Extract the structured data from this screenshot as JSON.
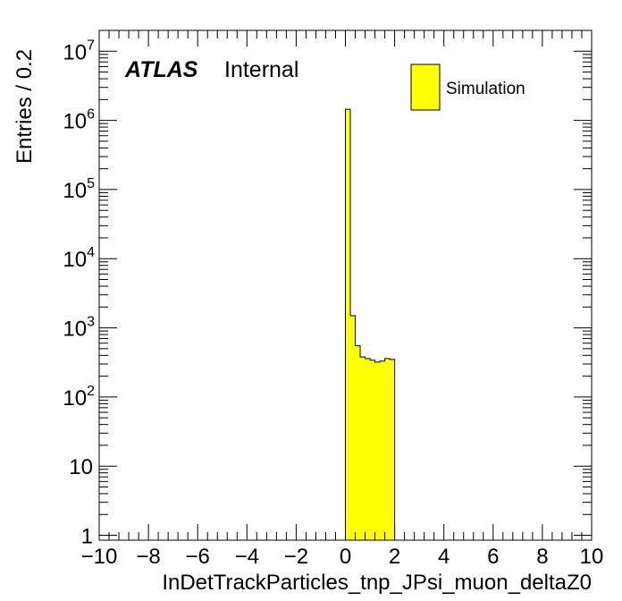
{
  "chart_data": {
    "type": "bar",
    "ylabel": "Entries / 0.2",
    "xlabel": "InDetTrackParticles_tnp_JPsi_muon_deltaZ0",
    "xlim": [
      -10,
      10
    ],
    "ylim": [
      0.85,
      20000000
    ],
    "yscale": "log",
    "bin_width": 0.2,
    "x_ticks": [
      "−10",
      "−8",
      "−6",
      "−4",
      "−2",
      "0",
      "2",
      "4",
      "6",
      "8",
      "10"
    ],
    "y_ticks": [
      {
        "base": "1",
        "exp": ""
      },
      {
        "base": "10",
        "exp": ""
      },
      {
        "base": "10",
        "exp": "2"
      },
      {
        "base": "10",
        "exp": "3"
      },
      {
        "base": "10",
        "exp": "4"
      },
      {
        "base": "10",
        "exp": "5"
      },
      {
        "base": "10",
        "exp": "6"
      },
      {
        "base": "10",
        "exp": "7"
      }
    ],
    "annotations": {
      "atlas": "ATLAS",
      "status": "Internal"
    },
    "series": [
      {
        "name": "Simulation",
        "color": "#ffff00",
        "edges": [
          0.0,
          0.2,
          0.4,
          0.6,
          0.8,
          1.0,
          1.2,
          1.4,
          1.6,
          1.8,
          2.0
        ],
        "values": [
          1450000,
          1500,
          550,
          380,
          360,
          340,
          320,
          330,
          360,
          350
        ]
      }
    ],
    "legend_position": "top-right",
    "grid": false
  }
}
